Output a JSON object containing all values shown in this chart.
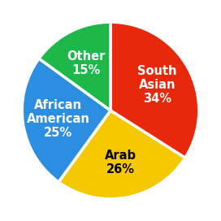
{
  "slices": [
    {
      "label": "South\nAsian",
      "pct_label": "34%",
      "value": 34,
      "color": "#e8280a",
      "text_color": "#ffffff"
    },
    {
      "label": "Arab",
      "pct_label": "26%",
      "value": 26,
      "color": "#f5c800",
      "text_color": "#000000"
    },
    {
      "label": "African\nAmerican",
      "pct_label": "25%",
      "value": 25,
      "color": "#2b8ee0",
      "text_color": "#ffffff"
    },
    {
      "label": "Other",
      "pct_label": "15%",
      "value": 15,
      "color": "#1cb84a",
      "text_color": "#ffffff"
    }
  ],
  "startangle": 90,
  "figsize": [
    2.72,
    2.72
  ],
  "dpi": 100,
  "label_fontsize": 10.5,
  "background_color": "#ffffff"
}
